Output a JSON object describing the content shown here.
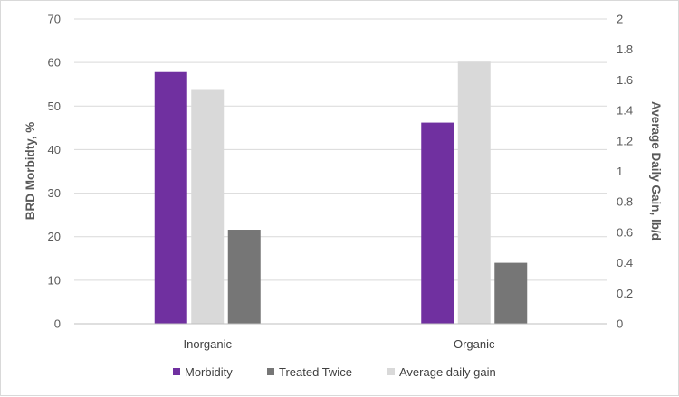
{
  "chart_data": {
    "type": "bar",
    "categories": [
      "Inorganic",
      "Organic"
    ],
    "series": [
      {
        "name": "Morbidity",
        "axis": "left",
        "values": [
          57.8,
          46.2
        ],
        "color": "#7030a0"
      },
      {
        "name": "Average daily gain",
        "axis": "right",
        "values": [
          1.54,
          1.72
        ],
        "color": "#d9d9d9"
      },
      {
        "name": "Treated Twice",
        "axis": "left",
        "values": [
          21.6,
          14.0
        ],
        "color": "#767676"
      }
    ],
    "legend_order": [
      "Morbidity",
      "Treated Twice",
      "Average daily gain"
    ],
    "ylabel": "BRD Morbidty, %",
    "ylim": [
      0,
      70
    ],
    "yticks": [
      "0",
      "10",
      "20",
      "30",
      "40",
      "50",
      "60",
      "70"
    ],
    "y2label": "Average Daily Gain, lb/d",
    "y2lim": [
      0,
      2
    ],
    "y2ticks": [
      "0",
      "0.2",
      "0.4",
      "0.6",
      "0.8",
      "1",
      "1.2",
      "1.4",
      "1.6",
      "1.8",
      "2"
    ],
    "grid": true,
    "legend_position": "bottom"
  }
}
